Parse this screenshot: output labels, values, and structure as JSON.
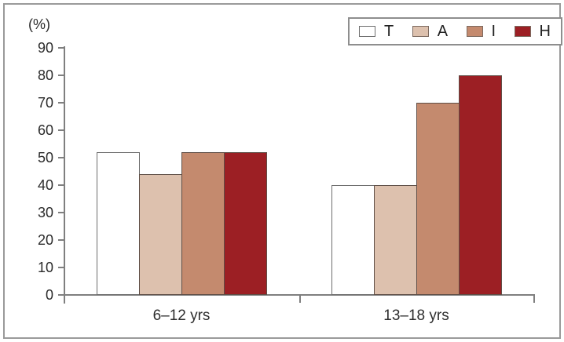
{
  "chart_data": {
    "type": "bar",
    "title": "",
    "xlabel": "",
    "ylabel": "(%)",
    "ylim": [
      0,
      90
    ],
    "yticks": [
      0,
      10,
      20,
      30,
      40,
      50,
      60,
      70,
      80,
      90
    ],
    "grid": false,
    "legend_position": "top-right",
    "categories": [
      "6–12 yrs",
      "13–18 yrs"
    ],
    "series": [
      {
        "name": "T",
        "color": "#ffffff",
        "values": [
          52,
          40
        ]
      },
      {
        "name": "A",
        "color": "#ddc1ae",
        "values": [
          44,
          40
        ]
      },
      {
        "name": "I",
        "color": "#c48a6e",
        "values": [
          52,
          70
        ]
      },
      {
        "name": "H",
        "color": "#9c1f24",
        "values": [
          52,
          80
        ]
      }
    ]
  }
}
